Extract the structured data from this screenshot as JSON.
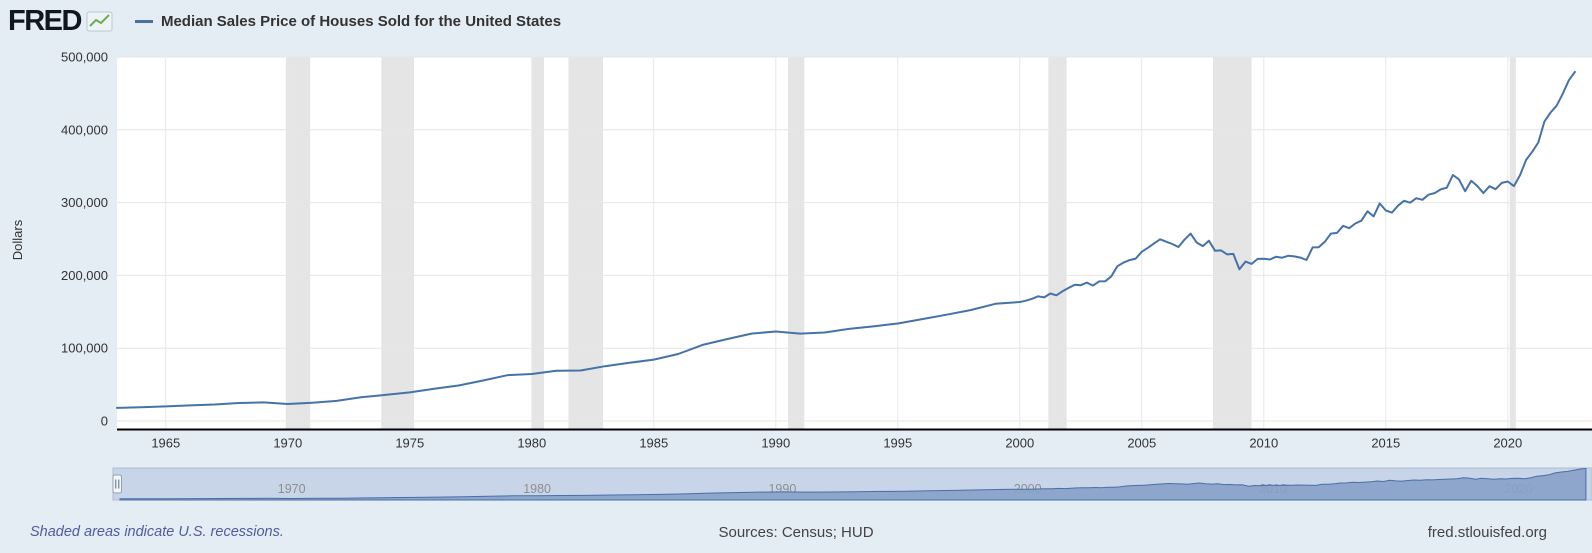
{
  "header": {
    "logo_text": "FRED",
    "logo_icon": "sparkline-icon",
    "legend_label": "Median Sales Price of Houses Sold for the United States"
  },
  "colors": {
    "page_bg": "#e4ecf4",
    "plot_bg": "#ffffff",
    "series_line": "#4572a7",
    "recession_band": "#e5e5e5",
    "gridline": "#e6e6e6",
    "axis_line": "#000000",
    "tick_label": "#333333",
    "nav_bg": "#c8d5e9",
    "nav_border": "#aebcd4",
    "nav_area": "#87a1c8",
    "nav_line": "#4a6fa5",
    "nav_label": "#8e8e8e",
    "logo_icon_green": "#6ab04c"
  },
  "chart_data": {
    "type": "line",
    "title": "Median Sales Price of Houses Sold for the United States",
    "xlabel": "",
    "ylabel": "Dollars",
    "legend_position": "top",
    "grid": true,
    "x_range": [
      1963,
      2023.8
    ],
    "y_range": [
      0,
      500000
    ],
    "x_ticks": [
      1965,
      1970,
      1975,
      1980,
      1985,
      1990,
      1995,
      2000,
      2005,
      2010,
      2015,
      2020
    ],
    "y_ticks": [
      0,
      100000,
      200000,
      300000,
      400000,
      500000
    ],
    "y_tick_labels": [
      "0",
      "100,000",
      "200,000",
      "300,000",
      "400,000",
      "500,000"
    ],
    "recession_bands": [
      [
        1969.92,
        1970.92
      ],
      [
        1973.83,
        1975.17
      ],
      [
        1980.0,
        1980.5
      ],
      [
        1981.5,
        1982.92
      ],
      [
        1990.5,
        1991.17
      ],
      [
        2001.17,
        2001.92
      ],
      [
        2007.92,
        2009.5
      ],
      [
        2020.08,
        2020.33
      ]
    ],
    "points": [
      [
        1963,
        17950
      ],
      [
        1964,
        18900
      ],
      [
        1965,
        20000
      ],
      [
        1966,
        21450
      ],
      [
        1967,
        22700
      ],
      [
        1968,
        24700
      ],
      [
        1969,
        25600
      ],
      [
        1970,
        23400
      ],
      [
        1971,
        25200
      ],
      [
        1972,
        27600
      ],
      [
        1973,
        32500
      ],
      [
        1974,
        35900
      ],
      [
        1975,
        39300
      ],
      [
        1976,
        44200
      ],
      [
        1977,
        48800
      ],
      [
        1978,
        55700
      ],
      [
        1979,
        62900
      ],
      [
        1980,
        64600
      ],
      [
        1981,
        68900
      ],
      [
        1982,
        69300
      ],
      [
        1983,
        75300
      ],
      [
        1984,
        79900
      ],
      [
        1985,
        84300
      ],
      [
        1986,
        92000
      ],
      [
        1987,
        104500
      ],
      [
        1988,
        112500
      ],
      [
        1989,
        120000
      ],
      [
        1990,
        122900
      ],
      [
        1991,
        120000
      ],
      [
        1992,
        121500
      ],
      [
        1993,
        126500
      ],
      [
        1994,
        130000
      ],
      [
        1995,
        133900
      ],
      [
        1996,
        140000
      ],
      [
        1997,
        146000
      ],
      [
        1998,
        152500
      ],
      [
        1999,
        161000
      ],
      [
        2000.0,
        163500
      ],
      [
        2000.25,
        165300
      ],
      [
        2000.5,
        167800
      ],
      [
        2000.75,
        171300
      ],
      [
        2001.0,
        169800
      ],
      [
        2001.25,
        175200
      ],
      [
        2001.5,
        172600
      ],
      [
        2001.75,
        178200
      ],
      [
        2002.0,
        182800
      ],
      [
        2002.25,
        187100
      ],
      [
        2002.5,
        186600
      ],
      [
        2002.75,
        190100
      ],
      [
        2003.0,
        186000
      ],
      [
        2003.25,
        191800
      ],
      [
        2003.5,
        191900
      ],
      [
        2003.75,
        198800
      ],
      [
        2004.0,
        212700
      ],
      [
        2004.25,
        217600
      ],
      [
        2004.5,
        221000
      ],
      [
        2004.75,
        223100
      ],
      [
        2005.0,
        232500
      ],
      [
        2005.25,
        237900
      ],
      [
        2005.5,
        243900
      ],
      [
        2005.75,
        249600
      ],
      [
        2006.0,
        246300
      ],
      [
        2006.25,
        243200
      ],
      [
        2006.5,
        239000
      ],
      [
        2006.75,
        249100
      ],
      [
        2007.0,
        257400
      ],
      [
        2007.25,
        245200
      ],
      [
        2007.5,
        240300
      ],
      [
        2007.75,
        247700
      ],
      [
        2008.0,
        233900
      ],
      [
        2008.25,
        234300
      ],
      [
        2008.5,
        228800
      ],
      [
        2008.75,
        229600
      ],
      [
        2009.0,
        208400
      ],
      [
        2009.25,
        219000
      ],
      [
        2009.5,
        215800
      ],
      [
        2009.75,
        222600
      ],
      [
        2010.0,
        222900
      ],
      [
        2010.25,
        221800
      ],
      [
        2010.5,
        225500
      ],
      [
        2010.75,
        224300
      ],
      [
        2011.0,
        226900
      ],
      [
        2011.25,
        226100
      ],
      [
        2011.5,
        224500
      ],
      [
        2011.75,
        221100
      ],
      [
        2012.0,
        238400
      ],
      [
        2012.25,
        238700
      ],
      [
        2012.5,
        246200
      ],
      [
        2012.75,
        257400
      ],
      [
        2013.0,
        258400
      ],
      [
        2013.25,
        268100
      ],
      [
        2013.5,
        264800
      ],
      [
        2013.75,
        271300
      ],
      [
        2014.0,
        275200
      ],
      [
        2014.25,
        288000
      ],
      [
        2014.5,
        281000
      ],
      [
        2014.75,
        298900
      ],
      [
        2015.0,
        289200
      ],
      [
        2015.25,
        286300
      ],
      [
        2015.5,
        295800
      ],
      [
        2015.75,
        302500
      ],
      [
        2016.0,
        299800
      ],
      [
        2016.25,
        306000
      ],
      [
        2016.5,
        303800
      ],
      [
        2016.75,
        310900
      ],
      [
        2017.0,
        313100
      ],
      [
        2017.25,
        318200
      ],
      [
        2017.5,
        320500
      ],
      [
        2017.75,
        337900
      ],
      [
        2018.0,
        331800
      ],
      [
        2018.25,
        315600
      ],
      [
        2018.5,
        330000
      ],
      [
        2018.75,
        322800
      ],
      [
        2019.0,
        313000
      ],
      [
        2019.25,
        322500
      ],
      [
        2019.5,
        318400
      ],
      [
        2019.75,
        327100
      ],
      [
        2020.0,
        329000
      ],
      [
        2020.25,
        322600
      ],
      [
        2020.5,
        337500
      ],
      [
        2020.75,
        358700
      ],
      [
        2021.0,
        369800
      ],
      [
        2021.25,
        382600
      ],
      [
        2021.5,
        411200
      ],
      [
        2021.75,
        423600
      ],
      [
        2022.0,
        433100
      ],
      [
        2022.25,
        449300
      ],
      [
        2022.5,
        468000
      ],
      [
        2022.75,
        479500
      ]
    ]
  },
  "navigator": {
    "year_labels": [
      1970,
      1980,
      1990,
      2000,
      2010,
      2020
    ]
  },
  "footer": {
    "note": "Shaded areas indicate U.S. recessions.",
    "sources": "Sources: Census; HUD",
    "site_link": "fred.stlouisfed.org"
  }
}
